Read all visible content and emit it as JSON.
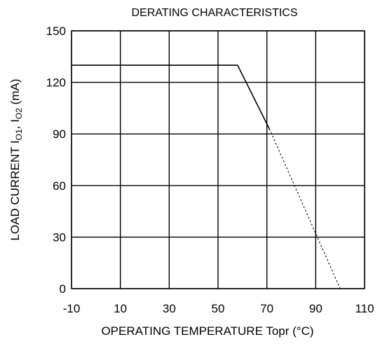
{
  "chart_data": {
    "type": "line",
    "title": "DERATING CHARACTERISTICS",
    "xlabel": "OPERATING TEMPERATURE Topr (°C)",
    "ylabel": "LOAD CURRENT IO1, IO2  (mA)",
    "ylabel_parts": {
      "pre": "LOAD CURRENT I",
      "sub1": "O1",
      "mid": ", I",
      "sub2": "O2",
      "post": "  (mA)"
    },
    "xlim": [
      -10,
      110
    ],
    "ylim": [
      0,
      150
    ],
    "x_ticks": [
      -10,
      10,
      30,
      50,
      70,
      90,
      110
    ],
    "y_ticks": [
      0,
      30,
      60,
      90,
      120,
      150
    ],
    "grid": true,
    "series": [
      {
        "style": "solid",
        "points": [
          [
            -10,
            130
          ],
          [
            58,
            130
          ],
          [
            71,
            93
          ]
        ]
      },
      {
        "style": "dashed",
        "points": [
          [
            71,
            93
          ],
          [
            100,
            0
          ]
        ]
      }
    ]
  }
}
